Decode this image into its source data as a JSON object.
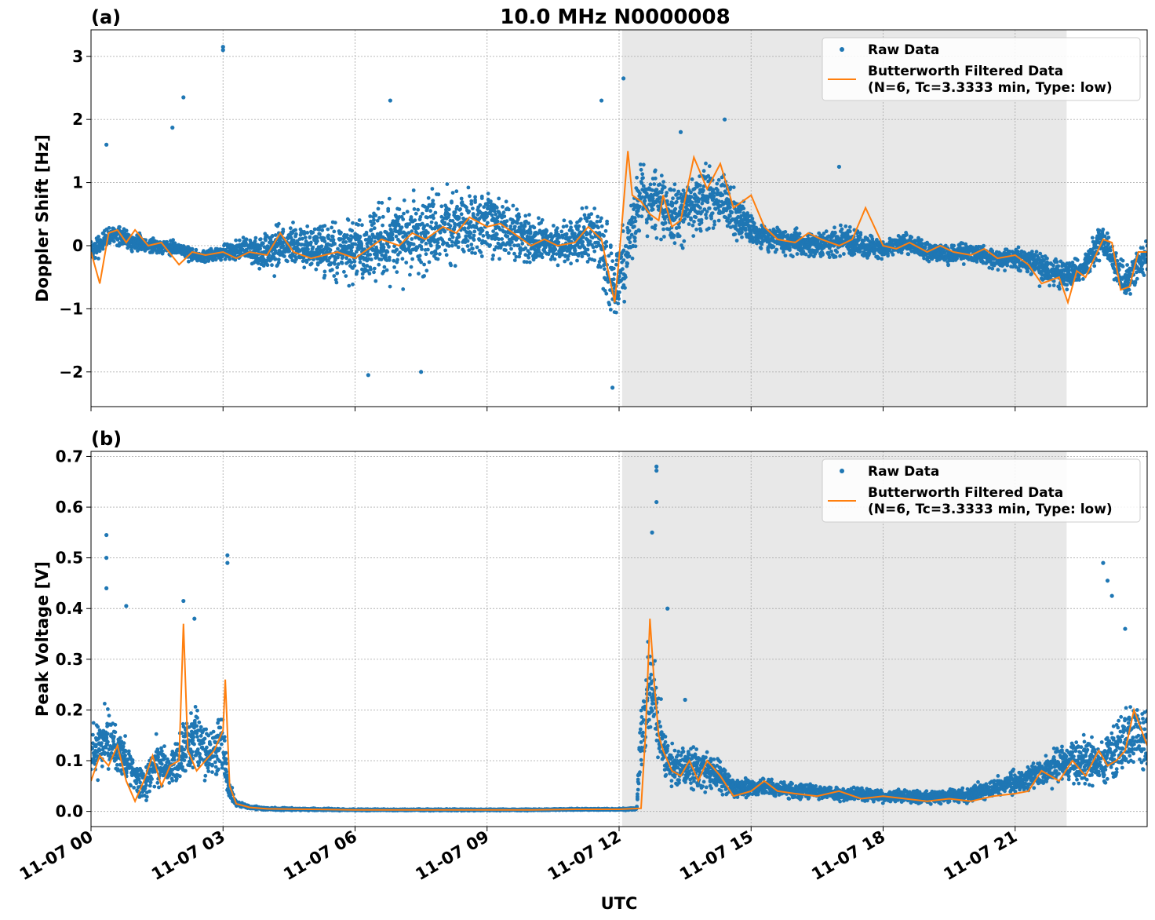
{
  "colors": {
    "raw": "#1f77b4",
    "filtered": "#ff7f0e",
    "shade": "#e8e8e8",
    "grid": "#b0b0b0"
  },
  "figure": {
    "title": "10.0 MHz N0000008",
    "xlabel": "UTC",
    "x_tick_labels": [
      "11-07 00",
      "11-07 03",
      "11-07 06",
      "11-07 09",
      "11-07 12",
      "11-07 15",
      "11-07 18",
      "11-07 21"
    ]
  },
  "chart_data": [
    {
      "type": "scatter",
      "panel_label": "(a)",
      "title": "10.0 MHz N0000008",
      "xlabel": "",
      "ylabel": "Doppler Shift [Hz]",
      "x_unit": "hours UTC on 11-07",
      "xlim": [
        0,
        24
      ],
      "ylim": [
        -2.55,
        3.42
      ],
      "y_ticks": [
        -2,
        -1,
        0,
        1,
        2,
        3
      ],
      "y_tick_labels": [
        "−2",
        "−1",
        "0",
        "1",
        "2",
        "3"
      ],
      "grid": true,
      "legend_position": "top-right",
      "shaded_interval_hours": [
        12.07,
        22.17
      ],
      "series": [
        {
          "name": "Raw Data",
          "style": "points",
          "x": [
            0,
            0.5,
            1,
            1.5,
            2,
            2.5,
            3,
            3.5,
            4,
            4.5,
            5,
            5.5,
            6,
            6.5,
            7,
            7.5,
            8,
            8.5,
            9,
            9.5,
            10,
            10.5,
            11,
            11.5,
            11.9,
            12.5,
            13,
            13.5,
            14,
            14.5,
            15,
            15.5,
            16,
            16.5,
            17,
            17.5,
            18,
            18.5,
            19,
            19.5,
            20,
            20.5,
            21,
            21.5,
            22,
            22.5,
            23,
            23.5,
            23.9
          ],
          "center": [
            -0.1,
            0.2,
            0.05,
            0.0,
            -0.05,
            -0.2,
            -0.1,
            -0.05,
            -0.1,
            0.0,
            -0.05,
            -0.1,
            -0.1,
            0.0,
            0.1,
            0.2,
            0.25,
            0.3,
            0.35,
            0.25,
            0.1,
            0.0,
            0.1,
            0.2,
            -0.8,
            0.8,
            0.6,
            0.5,
            0.8,
            0.6,
            0.2,
            0.1,
            0.05,
            0.0,
            0.1,
            0.0,
            -0.05,
            0.05,
            -0.1,
            -0.15,
            -0.1,
            -0.2,
            -0.2,
            -0.3,
            -0.5,
            -0.4,
            0.1,
            -0.6,
            -0.2
          ],
          "spread": [
            0.25,
            0.2,
            0.2,
            0.15,
            0.15,
            0.15,
            0.15,
            0.3,
            0.45,
            0.5,
            0.55,
            0.6,
            0.75,
            0.8,
            0.85,
            0.8,
            0.8,
            0.8,
            0.7,
            0.6,
            0.5,
            0.45,
            0.5,
            0.7,
            1.0,
            0.8,
            0.75,
            0.6,
            0.65,
            0.55,
            0.35,
            0.3,
            0.3,
            0.25,
            0.35,
            0.25,
            0.2,
            0.2,
            0.2,
            0.2,
            0.2,
            0.2,
            0.25,
            0.35,
            0.35,
            0.3,
            0.35,
            0.45,
            0.35
          ],
          "extremes": [
            [
              3.0,
              3.15
            ],
            [
              3.0,
              3.1
            ],
            [
              2.1,
              2.35
            ],
            [
              1.85,
              1.87
            ],
            [
              0.35,
              1.6
            ],
            [
              6.8,
              2.3
            ],
            [
              11.6,
              2.3
            ],
            [
              12.1,
              2.65
            ],
            [
              11.85,
              -2.25
            ],
            [
              6.3,
              -2.05
            ],
            [
              7.5,
              -2.0
            ],
            [
              13.4,
              1.8
            ],
            [
              14.4,
              2.0
            ],
            [
              17.0,
              1.25
            ]
          ]
        },
        {
          "name": "Butterworth Filtered Data\n(N=6, Tc=3.3333 min, Type: low)",
          "style": "line",
          "x": [
            0,
            0.2,
            0.4,
            0.6,
            0.8,
            1,
            1.3,
            1.6,
            2,
            2.3,
            2.6,
            3,
            3.3,
            3.6,
            4,
            4.3,
            4.6,
            5,
            5.3,
            5.6,
            6,
            6.3,
            6.6,
            7,
            7.3,
            7.6,
            8,
            8.3,
            8.6,
            9,
            9.3,
            9.6,
            10,
            10.3,
            10.6,
            11,
            11.3,
            11.6,
            11.9,
            12,
            12.2,
            12.3,
            12.5,
            12.7,
            12.9,
            13,
            13.2,
            13.4,
            13.7,
            14,
            14.3,
            14.6,
            15,
            15.3,
            15.6,
            16,
            16.3,
            16.6,
            17,
            17.3,
            17.6,
            18,
            18.3,
            18.6,
            19,
            19.3,
            19.6,
            20,
            20.3,
            20.6,
            21,
            21.3,
            21.6,
            22,
            22.2,
            22.4,
            22.6,
            23,
            23.2,
            23.4,
            23.6,
            23.8,
            24
          ],
          "y": [
            -0.1,
            -0.6,
            0.2,
            0.25,
            0.05,
            0.25,
            0.0,
            0.05,
            -0.3,
            -0.1,
            -0.15,
            -0.1,
            -0.2,
            -0.1,
            -0.15,
            0.2,
            -0.1,
            -0.2,
            -0.15,
            -0.1,
            -0.2,
            -0.05,
            0.1,
            0.0,
            0.2,
            0.1,
            0.3,
            0.2,
            0.45,
            0.3,
            0.35,
            0.2,
            0.0,
            0.1,
            0.0,
            0.05,
            0.3,
            0.1,
            -0.9,
            -0.2,
            1.5,
            0.8,
            0.7,
            0.5,
            0.4,
            0.8,
            0.3,
            0.4,
            1.4,
            0.9,
            1.3,
            0.6,
            0.8,
            0.3,
            0.1,
            0.05,
            0.2,
            0.1,
            0.0,
            0.1,
            0.6,
            0.0,
            -0.05,
            0.05,
            -0.1,
            0.0,
            -0.1,
            -0.15,
            -0.05,
            -0.2,
            -0.15,
            -0.3,
            -0.6,
            -0.5,
            -0.9,
            -0.4,
            -0.5,
            0.1,
            0.05,
            -0.7,
            -0.65,
            -0.1,
            -0.1
          ]
        }
      ]
    },
    {
      "type": "scatter",
      "panel_label": "(b)",
      "title": "",
      "xlabel": "UTC",
      "ylabel": "Peak Voltage [V]",
      "x_unit": "hours UTC on 11-07",
      "xlim": [
        0,
        24
      ],
      "ylim": [
        -0.03,
        0.71
      ],
      "y_ticks": [
        0.0,
        0.1,
        0.2,
        0.3,
        0.4,
        0.5,
        0.6,
        0.7
      ],
      "y_tick_labels": [
        "0.0",
        "0.1",
        "0.2",
        "0.3",
        "0.4",
        "0.5",
        "0.6",
        "0.7"
      ],
      "grid": true,
      "legend_position": "top-right",
      "shaded_interval_hours": [
        12.07,
        22.17
      ],
      "series": [
        {
          "name": "Raw Data",
          "style": "points",
          "x": [
            0,
            0.3,
            0.6,
            0.9,
            1.2,
            1.5,
            1.8,
            2.1,
            2.4,
            2.7,
            3.0,
            3.1,
            3.3,
            3.6,
            4,
            5,
            6,
            7,
            8,
            9,
            10,
            11,
            12,
            12.4,
            12.5,
            12.7,
            12.9,
            13.1,
            13.3,
            13.6,
            14,
            14.3,
            14.6,
            15,
            15.5,
            16,
            16.5,
            17,
            17.5,
            18,
            18.5,
            19,
            19.5,
            20,
            20.5,
            21,
            21.5,
            22,
            22.5,
            23,
            23.3,
            23.6,
            23.9
          ],
          "center": [
            0.12,
            0.14,
            0.12,
            0.08,
            0.05,
            0.1,
            0.08,
            0.12,
            0.15,
            0.1,
            0.14,
            0.05,
            0.015,
            0.008,
            0.005,
            0.004,
            0.003,
            0.003,
            0.003,
            0.003,
            0.003,
            0.004,
            0.004,
            0.005,
            0.15,
            0.25,
            0.15,
            0.1,
            0.08,
            0.09,
            0.08,
            0.07,
            0.045,
            0.05,
            0.045,
            0.04,
            0.038,
            0.035,
            0.033,
            0.03,
            0.03,
            0.028,
            0.03,
            0.035,
            0.045,
            0.06,
            0.07,
            0.09,
            0.1,
            0.1,
            0.12,
            0.15,
            0.14
          ],
          "spread": [
            0.07,
            0.08,
            0.07,
            0.05,
            0.04,
            0.06,
            0.05,
            0.08,
            0.09,
            0.07,
            0.09,
            0.03,
            0.008,
            0.004,
            0.003,
            0.003,
            0.002,
            0.002,
            0.002,
            0.002,
            0.002,
            0.002,
            0.002,
            0.003,
            0.1,
            0.15,
            0.1,
            0.06,
            0.05,
            0.06,
            0.05,
            0.04,
            0.025,
            0.025,
            0.022,
            0.02,
            0.018,
            0.018,
            0.017,
            0.016,
            0.016,
            0.016,
            0.018,
            0.02,
            0.025,
            0.03,
            0.035,
            0.05,
            0.06,
            0.065,
            0.08,
            0.1,
            0.09
          ],
          "extremes": [
            [
              0.35,
              0.545
            ],
            [
              0.35,
              0.5
            ],
            [
              0.35,
              0.44
            ],
            [
              0.8,
              0.405
            ],
            [
              2.1,
              0.415
            ],
            [
              2.35,
              0.38
            ],
            [
              3.1,
              0.505
            ],
            [
              3.1,
              0.49
            ],
            [
              12.85,
              0.68
            ],
            [
              12.85,
              0.672
            ],
            [
              12.85,
              0.61
            ],
            [
              12.75,
              0.55
            ],
            [
              13.1,
              0.4
            ],
            [
              13.5,
              0.22
            ],
            [
              23.0,
              0.49
            ],
            [
              23.2,
              0.425
            ],
            [
              23.5,
              0.36
            ],
            [
              23.1,
              0.455
            ]
          ]
        },
        {
          "name": "Butterworth Filtered Data\n(N=6, Tc=3.3333 min, Type: low)",
          "style": "line",
          "x": [
            0,
            0.2,
            0.4,
            0.6,
            0.8,
            1,
            1.2,
            1.4,
            1.6,
            1.8,
            2,
            2.1,
            2.2,
            2.4,
            2.6,
            2.8,
            3.0,
            3.05,
            3.15,
            3.3,
            3.6,
            4,
            5,
            6,
            7,
            8,
            9,
            10,
            11,
            12,
            12.5,
            12.6,
            12.7,
            12.8,
            12.9,
            13.0,
            13.2,
            13.4,
            13.6,
            13.8,
            14.0,
            14.3,
            14.6,
            15,
            15.3,
            15.6,
            16,
            16.5,
            17,
            17.5,
            18,
            18.5,
            19,
            19.5,
            20,
            20.5,
            21,
            21.3,
            21.6,
            22,
            22.3,
            22.6,
            22.9,
            23.1,
            23.3,
            23.5,
            23.7,
            24
          ],
          "y": [
            0.06,
            0.11,
            0.09,
            0.13,
            0.06,
            0.02,
            0.06,
            0.11,
            0.05,
            0.09,
            0.1,
            0.37,
            0.12,
            0.08,
            0.1,
            0.12,
            0.16,
            0.26,
            0.05,
            0.015,
            0.008,
            0.005,
            0.004,
            0.003,
            0.003,
            0.003,
            0.003,
            0.003,
            0.004,
            0.004,
            0.006,
            0.15,
            0.38,
            0.25,
            0.15,
            0.12,
            0.08,
            0.07,
            0.1,
            0.06,
            0.1,
            0.07,
            0.03,
            0.04,
            0.06,
            0.04,
            0.035,
            0.03,
            0.04,
            0.025,
            0.03,
            0.025,
            0.02,
            0.025,
            0.02,
            0.03,
            0.035,
            0.04,
            0.08,
            0.06,
            0.1,
            0.07,
            0.12,
            0.09,
            0.1,
            0.12,
            0.2,
            0.13
          ]
        }
      ]
    }
  ]
}
